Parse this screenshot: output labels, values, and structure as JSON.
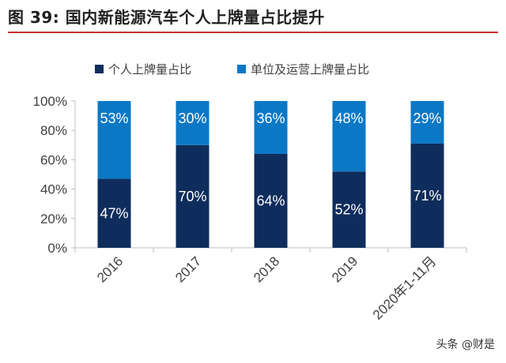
{
  "title": "图 39:  国内新能源汽车个人上牌量占比提升",
  "watermark": "头条 @财是",
  "colors": {
    "title_rule": "#c9302c",
    "personal": "#0f2d5c",
    "unit": "#0b78c6",
    "axis": "#bfbfbf",
    "text": "#404040"
  },
  "chart_data": {
    "type": "bar",
    "stacked": true,
    "categories": [
      "2016",
      "2017",
      "2018",
      "2019",
      "2020年1-11月"
    ],
    "series": [
      {
        "name": "个人上牌量占比",
        "values": [
          47,
          70,
          64,
          52,
          71
        ],
        "labels": [
          "47%",
          "70%",
          "64%",
          "52%",
          "71%"
        ]
      },
      {
        "name": "单位及运营上牌量占比",
        "values": [
          53,
          30,
          36,
          48,
          29
        ],
        "labels": [
          "53%",
          "30%",
          "36%",
          "48%",
          "29%"
        ]
      }
    ],
    "ylim": [
      0,
      100
    ],
    "yticks": [
      "0%",
      "20%",
      "40%",
      "60%",
      "80%",
      "100%"
    ],
    "grid": false,
    "legend": "top"
  }
}
